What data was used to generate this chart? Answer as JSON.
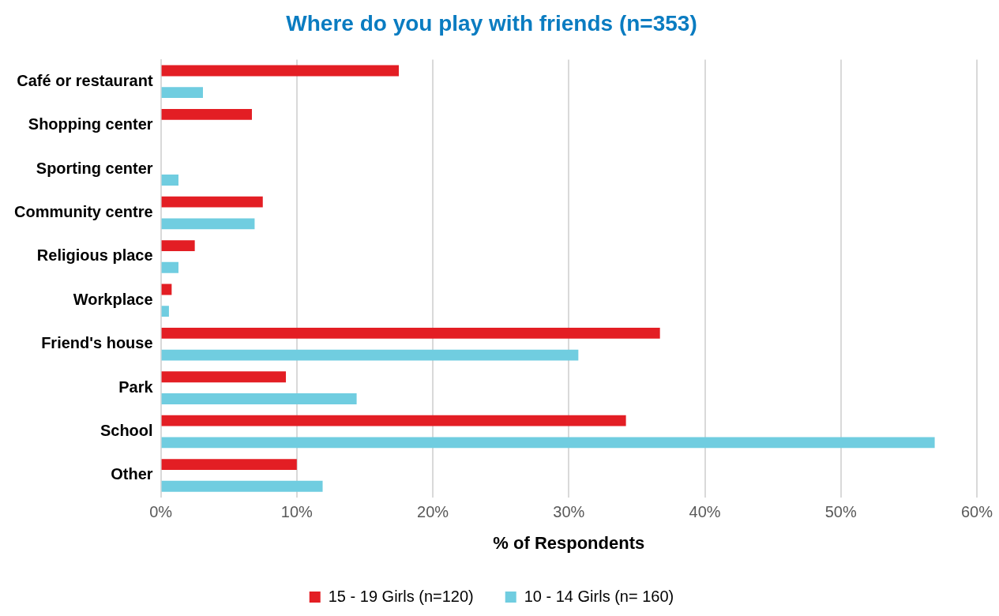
{
  "chart_data": {
    "type": "bar",
    "orientation": "horizontal",
    "title": "Where do you play with friends (n=353)",
    "xlabel": "% of Respondents",
    "categories": [
      "Café or restaurant",
      "Shopping center",
      "Sporting center",
      "Community centre",
      "Religious place",
      "Workplace",
      "Friend's house",
      "Park",
      "School",
      "Other"
    ],
    "series": [
      {
        "name": "15 - 19 Girls (n=120)",
        "color": "#e31e24",
        "values": [
          17.5,
          6.7,
          0,
          7.5,
          2.5,
          0.8,
          36.7,
          9.2,
          34.2,
          10.0
        ]
      },
      {
        "name": "10 - 14 Girls (n= 160)",
        "color": "#70cde0",
        "values": [
          3.1,
          0,
          1.3,
          6.9,
          1.3,
          0.6,
          30.7,
          14.4,
          56.9,
          11.9
        ]
      }
    ],
    "xlim": [
      0,
      60
    ],
    "xticks": [
      {
        "value": 0,
        "label": "0%"
      },
      {
        "value": 10,
        "label": "10%"
      },
      {
        "value": 20,
        "label": "20%"
      },
      {
        "value": 30,
        "label": "30%"
      },
      {
        "value": 40,
        "label": "40%"
      },
      {
        "value": 50,
        "label": "50%"
      },
      {
        "value": 60,
        "label": "60%"
      }
    ],
    "grid": "x",
    "legend": "bottom"
  }
}
